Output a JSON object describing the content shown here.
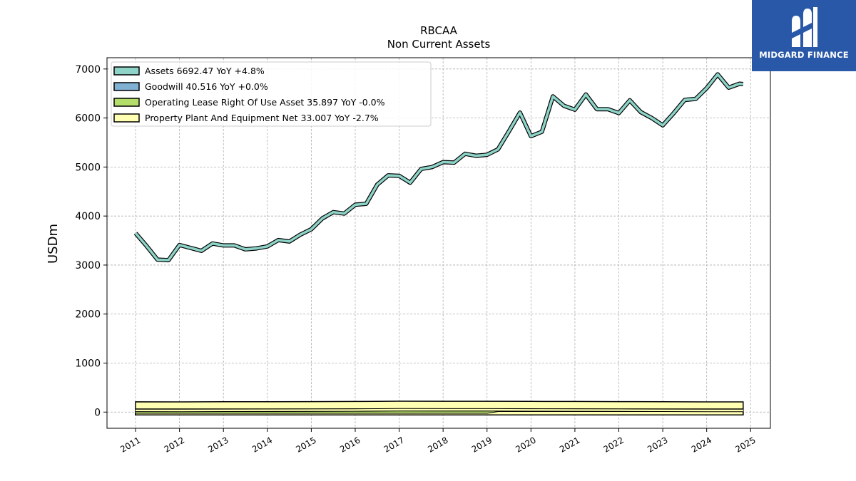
{
  "chart_data": {
    "type": "line",
    "title": "RBCAA",
    "subtitle": "Non Current  Assets",
    "ylabel": "USDm",
    "xlabel": "",
    "x_ticks": [
      "2011",
      "2012",
      "2013",
      "2014",
      "2015",
      "2016",
      "2017",
      "2018",
      "2019",
      "2020",
      "2021",
      "2022",
      "2023",
      "2024",
      "2025"
    ],
    "y_ticks": [
      "0",
      "1000",
      "2000",
      "3000",
      "4000",
      "5000",
      "6000",
      "7000"
    ],
    "ylim": [
      -330,
      7230
    ],
    "xlim": [
      2010.35,
      2025.45
    ],
    "grid": true,
    "legend_position": "top-left",
    "series": [
      {
        "name": "Assets",
        "legend": "Assets  6692.47 YoY +4.8%",
        "color": "#8dd3c7",
        "points": [
          [
            2011.0,
            3650
          ],
          [
            2011.25,
            3390
          ],
          [
            2011.5,
            3110
          ],
          [
            2011.75,
            3100
          ],
          [
            2012.0,
            3410
          ],
          [
            2012.25,
            3350
          ],
          [
            2012.5,
            3290
          ],
          [
            2012.75,
            3440
          ],
          [
            2013.0,
            3400
          ],
          [
            2013.25,
            3400
          ],
          [
            2013.5,
            3320
          ],
          [
            2013.75,
            3340
          ],
          [
            2014.0,
            3380
          ],
          [
            2014.25,
            3510
          ],
          [
            2014.5,
            3480
          ],
          [
            2014.75,
            3620
          ],
          [
            2015.0,
            3730
          ],
          [
            2015.25,
            3950
          ],
          [
            2015.5,
            4080
          ],
          [
            2015.75,
            4050
          ],
          [
            2016.0,
            4230
          ],
          [
            2016.25,
            4250
          ],
          [
            2016.5,
            4640
          ],
          [
            2016.75,
            4830
          ],
          [
            2017.0,
            4820
          ],
          [
            2017.25,
            4680
          ],
          [
            2017.5,
            4960
          ],
          [
            2017.75,
            5000
          ],
          [
            2018.0,
            5100
          ],
          [
            2018.25,
            5090
          ],
          [
            2018.5,
            5270
          ],
          [
            2018.75,
            5230
          ],
          [
            2019.0,
            5250
          ],
          [
            2019.25,
            5360
          ],
          [
            2019.5,
            5730
          ],
          [
            2019.75,
            6110
          ],
          [
            2020.0,
            5630
          ],
          [
            2020.25,
            5720
          ],
          [
            2020.5,
            6440
          ],
          [
            2020.75,
            6250
          ],
          [
            2021.0,
            6170
          ],
          [
            2021.25,
            6480
          ],
          [
            2021.5,
            6180
          ],
          [
            2021.75,
            6180
          ],
          [
            2022.0,
            6100
          ],
          [
            2022.25,
            6360
          ],
          [
            2022.5,
            6120
          ],
          [
            2022.75,
            6000
          ],
          [
            2023.0,
            5850
          ],
          [
            2023.25,
            6100
          ],
          [
            2023.5,
            6370
          ],
          [
            2023.75,
            6390
          ],
          [
            2024.0,
            6610
          ],
          [
            2024.25,
            6890
          ],
          [
            2024.5,
            6620
          ],
          [
            2024.75,
            6700
          ],
          [
            2024.83,
            6692.47
          ]
        ]
      },
      {
        "name": "Goodwill",
        "legend": "Goodwill  40.516 YoY +0.0%",
        "color": "#80b1d3",
        "points": [
          [
            2011.0,
            41
          ],
          [
            2016.25,
            41
          ],
          [
            2016.5,
            40.5
          ],
          [
            2024.83,
            40.516
          ]
        ]
      },
      {
        "name": "Operating Lease Right Of Use Asset",
        "legend": "Operating Lease Right Of Use Asset  35.897 YoY -0.0%",
        "color": "#b3de69",
        "points": [
          [
            2011.0,
            0
          ],
          [
            2019.0,
            0
          ],
          [
            2019.25,
            36
          ],
          [
            2024.83,
            35.897
          ]
        ]
      },
      {
        "name": "Property Plant And Equipment Net",
        "legend": "Property Plant And Equipment Net  33.007 YoY -2.7%",
        "color": "#ffffb3",
        "points": [
          [
            2011.0,
            35
          ],
          [
            2012.0,
            34
          ],
          [
            2013.0,
            36
          ],
          [
            2014.0,
            38
          ],
          [
            2015.0,
            40
          ],
          [
            2016.0,
            42
          ],
          [
            2016.5,
            45
          ],
          [
            2017.0,
            48
          ],
          [
            2018.0,
            47
          ],
          [
            2019.0,
            46
          ],
          [
            2020.0,
            44
          ],
          [
            2021.0,
            42
          ],
          [
            2022.0,
            40
          ],
          [
            2023.0,
            36
          ],
          [
            2024.0,
            34
          ],
          [
            2024.83,
            33.007
          ]
        ]
      }
    ]
  },
  "logo": {
    "text": "MIDGARD FINANCE"
  }
}
